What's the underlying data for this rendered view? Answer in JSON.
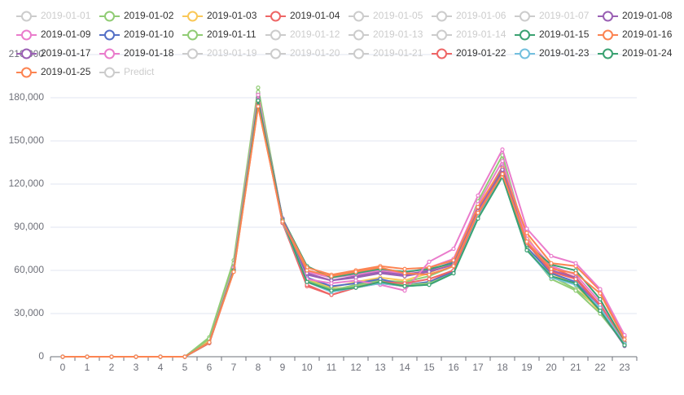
{
  "chart_data": {
    "type": "line",
    "categories": [
      "0",
      "1",
      "2",
      "3",
      "4",
      "5",
      "6",
      "7",
      "8",
      "9",
      "10",
      "11",
      "12",
      "13",
      "14",
      "15",
      "16",
      "17",
      "18",
      "19",
      "20",
      "21",
      "22",
      "23"
    ],
    "ylim": [
      0,
      210000
    ],
    "yticks": [
      0,
      {
        "value": 30000,
        "label": "30,000"
      },
      {
        "value": 60000,
        "label": "60,000"
      },
      {
        "value": 90000,
        "label": "90,000"
      },
      {
        "value": 120000,
        "label": "120,000"
      },
      {
        "value": 150000,
        "label": "150,000"
      },
      {
        "value": 180000,
        "label": "180,000"
      },
      {
        "value": 210000,
        "label": "210,000"
      }
    ],
    "grid": true,
    "series": [
      {
        "name": "2019-01-01",
        "selected": false
      },
      {
        "name": "2019-01-02",
        "color": "#91cc75",
        "values": [
          0,
          0,
          0,
          0,
          0,
          0,
          13500,
          67000,
          187000,
          95000,
          52000,
          46000,
          50000,
          53000,
          52000,
          56000,
          63000,
          108000,
          140000,
          80000,
          56000,
          47000,
          33000,
          9000
        ]
      },
      {
        "name": "2019-01-03",
        "color": "#fac858",
        "values": [
          0,
          0,
          0,
          0,
          0,
          0,
          11000,
          62000,
          178000,
          94000,
          54000,
          48000,
          52000,
          55000,
          53000,
          58000,
          66000,
          104000,
          132000,
          84000,
          58000,
          50000,
          31000,
          10000
        ]
      },
      {
        "name": "2019-01-04",
        "color": "#ee6666",
        "values": [
          0,
          0,
          0,
          0,
          0,
          0,
          10000,
          60000,
          176000,
          93000,
          49000,
          43000,
          48000,
          51000,
          49000,
          52000,
          60000,
          100000,
          128000,
          78000,
          62000,
          55000,
          36000,
          9000
        ]
      },
      {
        "name": "2019-01-05",
        "selected": false
      },
      {
        "name": "2019-01-06",
        "selected": false
      },
      {
        "name": "2019-01-07",
        "selected": false
      },
      {
        "name": "2019-01-08",
        "color": "#9a60b4",
        "values": [
          0,
          0,
          0,
          0,
          0,
          0,
          10000,
          61000,
          183000,
          96000,
          57000,
          53000,
          56000,
          59000,
          57000,
          60000,
          66000,
          102000,
          132000,
          80000,
          60000,
          54000,
          35000,
          8000
        ]
      },
      {
        "name": "2019-01-09",
        "color": "#ea7ccc",
        "values": [
          0,
          0,
          0,
          0,
          0,
          0,
          10000,
          62000,
          182000,
          95000,
          59000,
          55000,
          57000,
          60000,
          58000,
          62000,
          68000,
          106000,
          136000,
          82000,
          63000,
          57000,
          38000,
          10000
        ]
      },
      {
        "name": "2019-01-10",
        "color": "#5470c6",
        "values": [
          0,
          0,
          0,
          0,
          0,
          0,
          10000,
          61000,
          180000,
          94000,
          55000,
          49000,
          51000,
          54000,
          50000,
          52000,
          59000,
          98000,
          128000,
          76000,
          58000,
          52000,
          33000,
          8000
        ]
      },
      {
        "name": "2019-01-11",
        "color": "#91cc75",
        "values": [
          0,
          0,
          0,
          0,
          0,
          0,
          12500,
          65000,
          184000,
          95000,
          53000,
          47000,
          49000,
          52000,
          50000,
          51000,
          58000,
          97000,
          126000,
          75000,
          54000,
          46000,
          30000,
          9000
        ]
      },
      {
        "name": "2019-01-12",
        "selected": false
      },
      {
        "name": "2019-01-13",
        "selected": false
      },
      {
        "name": "2019-01-14",
        "selected": false
      },
      {
        "name": "2019-01-15",
        "color": "#3ba272",
        "values": [
          0,
          0,
          0,
          0,
          0,
          0,
          10000,
          61000,
          180000,
          96000,
          63000,
          55000,
          58000,
          61000,
          59000,
          61000,
          65000,
          100000,
          128000,
          78000,
          64000,
          60000,
          40000,
          10000
        ]
      },
      {
        "name": "2019-01-16",
        "color": "#fc8452",
        "values": [
          0,
          0,
          0,
          0,
          0,
          0,
          9500,
          59000,
          174000,
          95000,
          62000,
          57000,
          60000,
          63000,
          61000,
          62000,
          67000,
          104000,
          131000,
          86000,
          65000,
          63000,
          46000,
          14000
        ]
      },
      {
        "name": "2019-01-17",
        "color": "#9a60b4",
        "values": [
          0,
          0,
          0,
          0,
          0,
          0,
          9500,
          60000,
          179000,
          96000,
          58000,
          53000,
          55000,
          58000,
          56000,
          59000,
          64000,
          101000,
          130000,
          79000,
          60000,
          55000,
          32000,
          7500
        ]
      },
      {
        "name": "2019-01-18",
        "color": "#ea7ccc",
        "values": [
          0,
          0,
          0,
          0,
          0,
          0,
          10000,
          62000,
          182000,
          93000,
          54000,
          51000,
          53000,
          50000,
          46000,
          66000,
          75000,
          112000,
          144000,
          89000,
          70000,
          65000,
          47000,
          15000
        ]
      },
      {
        "name": "2019-01-19",
        "selected": false
      },
      {
        "name": "2019-01-20",
        "selected": false
      },
      {
        "name": "2019-01-21",
        "selected": false
      },
      {
        "name": "2019-01-22",
        "color": "#ee6666",
        "values": [
          0,
          0,
          0,
          0,
          0,
          0,
          9500,
          60000,
          176000,
          93000,
          50000,
          43000,
          48000,
          52000,
          51000,
          54000,
          60000,
          99000,
          127000,
          79000,
          59000,
          54000,
          36000,
          9500
        ]
      },
      {
        "name": "2019-01-23",
        "color": "#73c0de",
        "values": [
          0,
          0,
          0,
          0,
          0,
          0,
          10000,
          60000,
          178000,
          94000,
          52000,
          45000,
          48000,
          51000,
          49000,
          50000,
          58000,
          97000,
          125000,
          74000,
          55000,
          50000,
          34000,
          9000
        ]
      },
      {
        "name": "2019-01-24",
        "color": "#3ba272",
        "values": [
          0,
          0,
          0,
          0,
          0,
          0,
          10000,
          60000,
          178000,
          95000,
          52000,
          46000,
          48000,
          52000,
          49000,
          50000,
          58000,
          96000,
          125000,
          74000,
          56000,
          51000,
          32000,
          8000
        ]
      },
      {
        "name": "2019-01-25",
        "color": "#fc8452",
        "values": [
          0,
          0,
          0,
          0,
          0,
          0,
          10000,
          59000,
          174000,
          94000,
          60000,
          56000,
          59000,
          62000,
          58000,
          57000,
          63000,
          100000,
          127000,
          80000,
          61000,
          58000,
          44000,
          12000
        ]
      },
      {
        "name": "Predict",
        "selected": false
      }
    ]
  }
}
